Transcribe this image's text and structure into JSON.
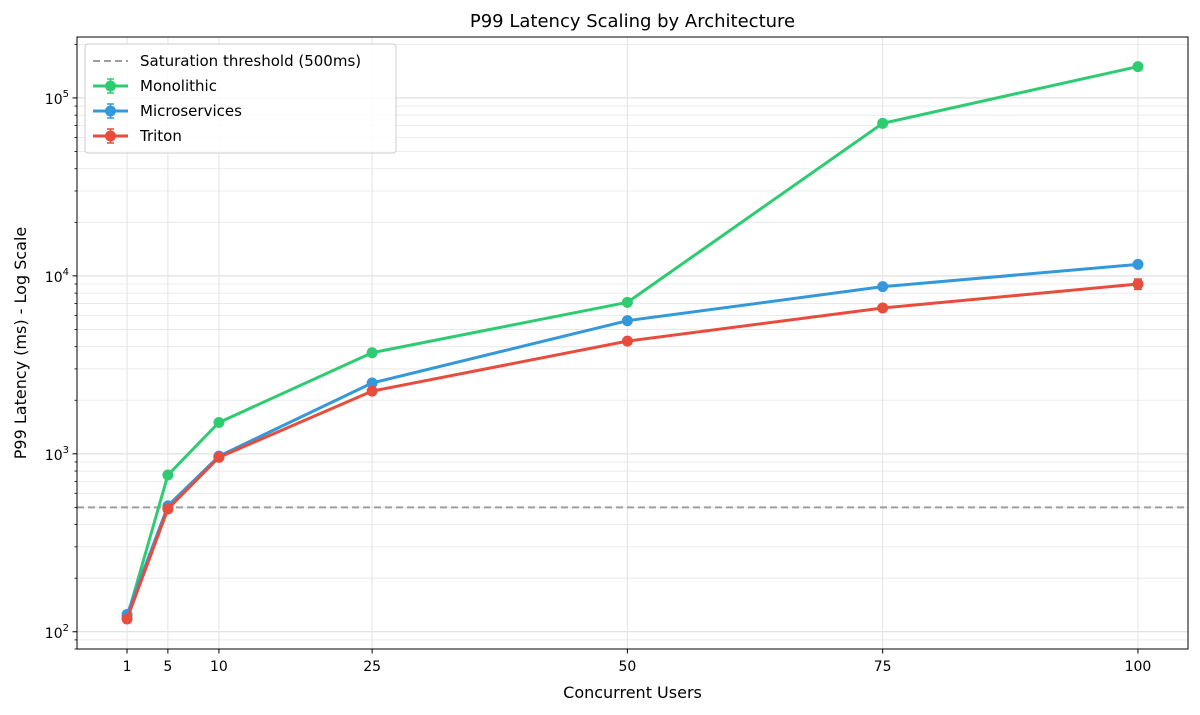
{
  "chart_data": {
    "type": "line",
    "title": "P99 Latency Scaling by Architecture",
    "xlabel": "Concurrent Users",
    "ylabel": "P99 Latency (ms) - Log Scale",
    "yscale": "log",
    "x": [
      1,
      5,
      10,
      25,
      50,
      75,
      100
    ],
    "xlim": [
      -3.9,
      104.9
    ],
    "ylim": [
      80,
      220000
    ],
    "xticks": [
      {
        "value": 1,
        "label": "1"
      },
      {
        "value": 5,
        "label": "5"
      },
      {
        "value": 10,
        "label": "10"
      },
      {
        "value": 25,
        "label": "25"
      },
      {
        "value": 50,
        "label": "50"
      },
      {
        "value": 75,
        "label": "75"
      },
      {
        "value": 100,
        "label": "100"
      }
    ],
    "yticks": [
      {
        "value": 100,
        "base": "10",
        "exp": "2"
      },
      {
        "value": 1000,
        "base": "10",
        "exp": "3"
      },
      {
        "value": 10000,
        "base": "10",
        "exp": "4"
      },
      {
        "value": 100000,
        "base": "10",
        "exp": "5"
      }
    ],
    "grid": true,
    "legend_position": "top-left",
    "threshold": {
      "label": "Saturation threshold (500ms)",
      "value": 500,
      "color": "#9e9e9e"
    },
    "series": [
      {
        "name": "Monolithic",
        "color": "#2ecc71",
        "values": [
          120,
          760,
          1500,
          3700,
          7100,
          72000,
          150000
        ],
        "error": [
          0,
          0,
          0,
          0,
          0,
          0,
          0
        ]
      },
      {
        "name": "Microservices",
        "color": "#3498db",
        "values": [
          125,
          510,
          970,
          2500,
          5600,
          8700,
          11600
        ],
        "error": [
          0,
          0,
          0,
          0,
          0,
          0,
          0
        ]
      },
      {
        "name": "Triton",
        "color": "#e74c3c",
        "values": [
          118,
          490,
          955,
          2250,
          4300,
          6600,
          9000
        ],
        "error": [
          0,
          0,
          0,
          0,
          0,
          0,
          600
        ]
      }
    ]
  }
}
